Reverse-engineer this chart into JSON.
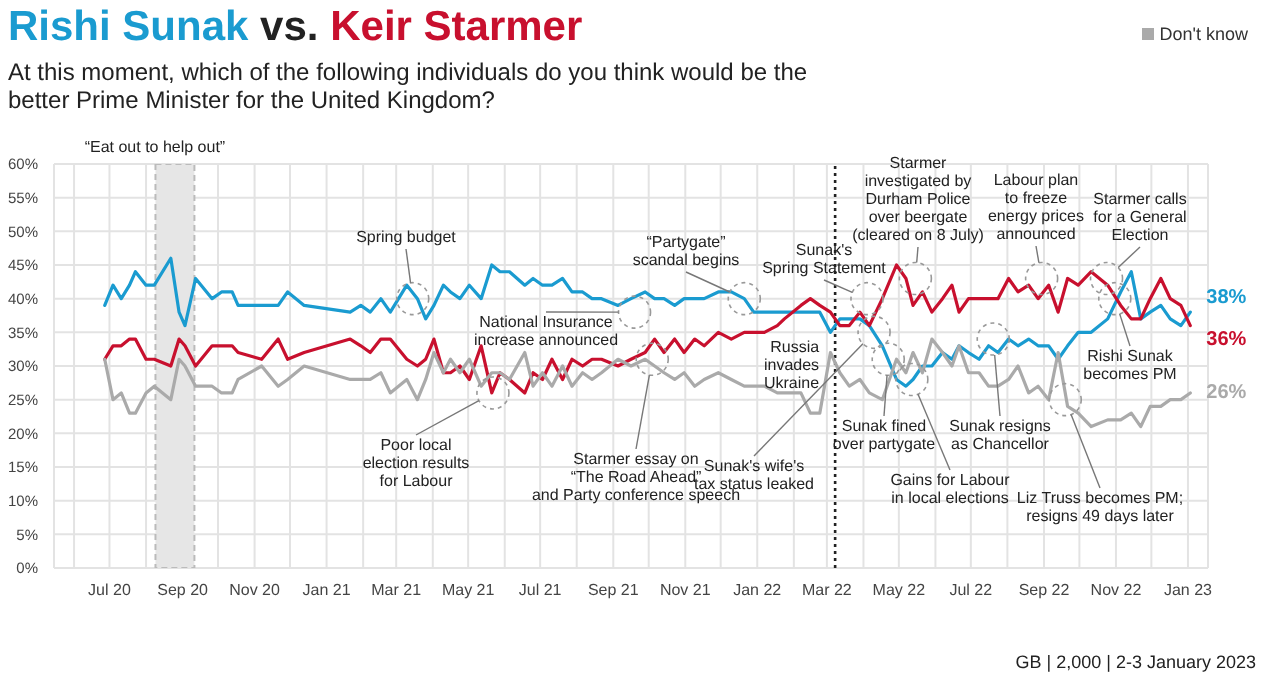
{
  "chart_data": {
    "type": "line",
    "title": "vs.",
    "subtitle": "At this moment, which of the following individuals do you think would be the better Prime Minister for the United Kingdom?",
    "x": [
      "2020-06-27",
      "2020-07-04",
      "2020-07-11",
      "2020-07-18",
      "2020-07-23",
      "2020-08-01",
      "2020-08-08",
      "2020-08-22",
      "2020-08-29",
      "2020-09-03",
      "2020-09-12",
      "2020-09-26",
      "2020-10-04",
      "2020-10-13",
      "2020-10-18",
      "2020-11-07",
      "2020-11-21",
      "2020-11-29",
      "2020-12-13",
      "2021-01-21",
      "2021-01-30",
      "2021-02-07",
      "2021-02-16",
      "2021-02-24",
      "2021-03-10",
      "2021-03-19",
      "2021-03-26",
      "2021-04-02",
      "2021-04-10",
      "2021-04-16",
      "2021-04-24",
      "2021-05-02",
      "2021-05-12",
      "2021-05-21",
      "2021-05-28",
      "2021-06-05",
      "2021-06-18",
      "2021-06-25",
      "2021-07-03",
      "2021-07-11",
      "2021-07-20",
      "2021-07-28",
      "2021-08-06",
      "2021-08-14",
      "2021-08-22",
      "2021-09-05",
      "2021-09-16",
      "2021-09-28",
      "2021-10-06",
      "2021-10-14",
      "2021-10-23",
      "2021-10-31",
      "2021-11-09",
      "2021-11-17",
      "2021-11-29",
      "2021-12-10",
      "2021-12-21",
      "2021-12-29",
      "2022-01-07",
      "2022-01-18",
      "2022-01-24",
      "2022-02-07",
      "2022-02-15",
      "2022-02-23",
      "2022-03-04",
      "2022-03-12",
      "2022-03-20",
      "2022-03-29",
      "2022-04-06",
      "2022-04-17",
      "2022-04-29",
      "2022-05-07",
      "2022-05-13",
      "2022-05-21",
      "2022-05-29",
      "2022-06-07",
      "2022-06-15",
      "2022-06-21",
      "2022-06-29",
      "2022-07-08",
      "2022-07-16",
      "2022-07-24",
      "2022-08-02",
      "2022-08-10",
      "2022-08-19",
      "2022-08-27",
      "2022-09-05",
      "2022-09-13",
      "2022-09-21",
      "2022-09-30",
      "2022-10-11",
      "2022-10-25",
      "2022-11-05",
      "2022-11-14",
      "2022-11-22",
      "2022-11-30",
      "2022-12-09",
      "2022-12-17",
      "2022-12-26",
      "2023-01-03"
    ],
    "series": [
      {
        "name": "Rishi Sunak",
        "color": "#1a9bd0",
        "values": [
          39,
          42,
          40,
          42,
          44,
          42,
          42,
          46,
          38,
          36,
          43,
          40,
          41,
          41,
          39,
          39,
          39,
          41,
          39,
          38,
          39,
          38,
          40,
          38,
          42,
          40,
          37,
          39,
          42,
          41,
          40,
          42,
          40,
          45,
          44,
          44,
          42,
          43,
          42,
          42,
          43,
          41,
          41,
          40,
          40,
          39,
          40,
          41,
          40,
          40,
          39,
          40,
          40,
          40,
          41,
          41,
          40,
          38,
          38,
          38,
          38,
          38,
          38,
          38,
          35,
          37,
          37,
          37,
          36,
          33,
          28,
          27,
          28,
          30,
          30,
          32,
          31,
          33,
          32,
          31,
          33,
          32,
          34,
          33,
          34,
          33,
          33,
          31,
          33,
          35,
          35,
          37,
          41,
          44,
          37,
          38,
          39,
          37,
          36,
          38
        ],
        "value_labels": [
          null,
          null,
          null,
          null,
          null,
          null,
          null,
          null,
          null,
          null,
          null,
          null,
          null,
          null,
          null,
          null,
          null,
          null,
          null,
          null,
          null,
          null,
          null,
          null,
          null,
          null,
          null,
          null,
          null,
          null,
          null,
          null,
          null,
          null,
          null,
          null,
          null,
          null,
          null,
          null,
          null,
          null,
          null,
          null,
          null,
          null,
          null,
          null,
          null,
          null,
          null,
          null,
          null,
          null,
          null,
          null,
          null,
          null,
          null,
          null,
          null,
          null,
          null,
          null,
          null,
          null,
          null,
          null,
          null,
          null,
          null,
          null,
          null,
          null,
          null,
          null,
          null,
          null,
          null,
          null,
          null,
          null,
          null,
          null,
          null,
          null,
          null,
          null,
          null,
          null,
          null,
          null,
          null,
          null,
          null,
          null,
          null,
          null,
          null,
          "38%"
        ]
      },
      {
        "name": "Keir Starmer",
        "color": "#c8102e",
        "values": [
          31,
          33,
          33,
          34,
          34,
          31,
          31,
          30,
          34,
          33,
          30,
          33,
          33,
          33,
          32,
          31,
          34,
          31,
          32,
          34,
          33,
          32,
          34,
          34,
          31,
          30,
          31,
          34,
          29,
          29,
          30,
          28,
          33,
          26,
          29,
          28,
          26,
          29,
          28,
          31,
          28,
          31,
          30,
          31,
          31,
          30,
          31,
          32,
          34,
          32,
          34,
          32,
          34,
          33,
          35,
          34,
          35,
          35,
          35,
          36,
          37,
          39,
          40,
          39,
          38,
          36,
          36,
          38,
          36,
          40,
          45,
          43,
          39,
          41,
          38,
          40,
          42,
          38,
          40,
          40,
          40,
          40,
          43,
          41,
          42,
          40,
          42,
          38,
          43,
          42,
          44,
          42,
          39,
          37,
          37,
          40,
          43,
          40,
          39,
          36
        ],
        "value_labels": [
          null,
          null,
          null,
          null,
          null,
          null,
          null,
          null,
          null,
          null,
          null,
          null,
          null,
          null,
          null,
          null,
          null,
          null,
          null,
          null,
          null,
          null,
          null,
          null,
          null,
          null,
          null,
          null,
          null,
          null,
          null,
          null,
          null,
          null,
          null,
          null,
          null,
          null,
          null,
          null,
          null,
          null,
          null,
          null,
          null,
          null,
          null,
          null,
          null,
          null,
          null,
          null,
          null,
          null,
          null,
          null,
          null,
          null,
          null,
          null,
          null,
          null,
          null,
          null,
          null,
          null,
          null,
          null,
          null,
          null,
          null,
          null,
          null,
          null,
          null,
          null,
          null,
          null,
          null,
          null,
          null,
          null,
          null,
          null,
          null,
          null,
          null,
          null,
          null,
          null,
          null,
          null,
          null,
          null,
          null,
          null,
          null,
          null,
          null,
          "36%"
        ]
      },
      {
        "name": "Don't know",
        "color": "#aaaaaa",
        "values": [
          31,
          25,
          26,
          23,
          23,
          26,
          27,
          25,
          31,
          30,
          27,
          27,
          26,
          26,
          28,
          30,
          27,
          28,
          30,
          28,
          28,
          28,
          29,
          26,
          28,
          25,
          28,
          32,
          29,
          31,
          29,
          31,
          27,
          29,
          29,
          28,
          32,
          27,
          29,
          27,
          30,
          27,
          29,
          28,
          29,
          31,
          30,
          31,
          30,
          29,
          28,
          29,
          27,
          28,
          29,
          28,
          27,
          27,
          27,
          26,
          26,
          26,
          23,
          23,
          32,
          29,
          27,
          28,
          26,
          25,
          31,
          29,
          32,
          29,
          34,
          32,
          30,
          33,
          29,
          29,
          27,
          27,
          28,
          30,
          26,
          27,
          25,
          32,
          24,
          23,
          21,
          22,
          22,
          23,
          21,
          24,
          24,
          25,
          25,
          26
        ],
        "value_labels": [
          null,
          null,
          null,
          null,
          null,
          null,
          null,
          null,
          null,
          null,
          null,
          null,
          null,
          null,
          null,
          null,
          null,
          null,
          null,
          null,
          null,
          null,
          null,
          null,
          null,
          null,
          null,
          null,
          null,
          null,
          null,
          null,
          null,
          null,
          null,
          null,
          null,
          null,
          null,
          null,
          null,
          null,
          null,
          null,
          null,
          null,
          null,
          null,
          null,
          null,
          null,
          null,
          null,
          null,
          null,
          null,
          null,
          null,
          null,
          null,
          null,
          null,
          null,
          null,
          null,
          null,
          null,
          null,
          null,
          null,
          null,
          null,
          null,
          null,
          null,
          null,
          null,
          null,
          null,
          null,
          null,
          null,
          null,
          null,
          null,
          null,
          null,
          null,
          null,
          null,
          null,
          null,
          null,
          null,
          null,
          null,
          null,
          null,
          null,
          "26%"
        ]
      }
    ],
    "xlim": [
      "2020-05-15",
      "2023-01-18"
    ],
    "xticks": [
      {
        "value": "2020-06-01",
        "label": null
      },
      {
        "value": "2020-07-01",
        "label": "Jul 20"
      },
      {
        "value": "2020-08-01",
        "label": null
      },
      {
        "value": "2020-09-01",
        "label": "Sep 20"
      },
      {
        "value": "2020-10-01",
        "label": null
      },
      {
        "value": "2020-11-01",
        "label": "Nov 20"
      },
      {
        "value": "2020-12-01",
        "label": null
      },
      {
        "value": "2021-01-01",
        "label": "Jan 21"
      },
      {
        "value": "2021-02-01",
        "label": null
      },
      {
        "value": "2021-03-01",
        "label": "Mar 21"
      },
      {
        "value": "2021-04-01",
        "label": null
      },
      {
        "value": "2021-05-01",
        "label": "May 21"
      },
      {
        "value": "2021-06-01",
        "label": null
      },
      {
        "value": "2021-07-01",
        "label": "Jul 21"
      },
      {
        "value": "2021-08-01",
        "label": null
      },
      {
        "value": "2021-09-01",
        "label": "Sep 21"
      },
      {
        "value": "2021-10-01",
        "label": null
      },
      {
        "value": "2021-11-01",
        "label": "Nov 21"
      },
      {
        "value": "2021-12-01",
        "label": null
      },
      {
        "value": "2022-01-01",
        "label": "Jan 22"
      },
      {
        "value": "2022-02-01",
        "label": null
      },
      {
        "value": "2022-03-01",
        "label": "Mar 22"
      },
      {
        "value": "2022-04-01",
        "label": null
      },
      {
        "value": "2022-05-01",
        "label": "May 22"
      },
      {
        "value": "2022-06-01",
        "label": null
      },
      {
        "value": "2022-07-01",
        "label": "Jul 22"
      },
      {
        "value": "2022-08-01",
        "label": null
      },
      {
        "value": "2022-09-01",
        "label": "Sep 22"
      },
      {
        "value": "2022-10-01",
        "label": null
      },
      {
        "value": "2022-11-01",
        "label": "Nov 22"
      },
      {
        "value": "2022-12-01",
        "label": null
      },
      {
        "value": "2023-01-01",
        "label": "Jan 23"
      }
    ],
    "ylim": [
      0,
      60
    ],
    "yticks": [
      {
        "value": 0,
        "label": "0%"
      },
      {
        "value": 5,
        "label": "5%"
      },
      {
        "value": 10,
        "label": "10%"
      },
      {
        "value": 15,
        "label": "15%"
      },
      {
        "value": 20,
        "label": "20%"
      },
      {
        "value": 25,
        "label": "25%"
      },
      {
        "value": 30,
        "label": "30%"
      },
      {
        "value": 35,
        "label": "35%"
      },
      {
        "value": 40,
        "label": "40%"
      },
      {
        "value": 45,
        "label": "45%"
      },
      {
        "value": 50,
        "label": "50%"
      },
      {
        "value": 55,
        "label": "55%"
      },
      {
        "value": 60,
        "label": "60%"
      }
    ],
    "grid": true,
    "legend": "top right",
    "marker": "none",
    "line_style": "solid",
    "bands": [
      {
        "axis": "x",
        "from": "2020-08-09",
        "to": "2020-09-11",
        "label": "“Eat out to help out”",
        "color": "#e6e6e6"
      }
    ],
    "ref_lines": [
      {
        "axis": "x",
        "value": "2022-03-08",
        "label": "Russia\ninvades\nUkraine",
        "line_style": "dotted",
        "color": "#222222"
      }
    ],
    "annotations": [
      {
        "text": "Spring budget",
        "x": "2021-03-15",
        "y": 40
      },
      {
        "text": "Poor local\nelection results\nfor Labour",
        "x": "2021-05-22",
        "y": 26
      },
      {
        "text": "National Insurance\nincrease announced",
        "x": "2021-09-19",
        "y": 38
      },
      {
        "text": "Starmer essay on\n“The Road Ahead”\nand Party conference speech",
        "x": "2021-10-04",
        "y": 31
      },
      {
        "text": "“Partygate”\nscandal begins",
        "x": "2021-12-21",
        "y": 40
      },
      {
        "text": "Sunak's\nSpring Statement",
        "x": "2022-04-04",
        "y": 40
      },
      {
        "text": "Sunak's wife's\ntax status leaked",
        "x": "2022-04-10",
        "y": 35
      },
      {
        "text": "Sunak fined\nover partygate",
        "x": "2022-04-22",
        "y": 31
      },
      {
        "text": "Gains for Labour\nin local elections",
        "x": "2022-05-12",
        "y": 28
      },
      {
        "text": "Starmer\ninvestigated by\nDurham Police\nover beergate\n(cleared on 8 July)",
        "x": "2022-05-15",
        "y": 43
      },
      {
        "text": "Sunak resigns\nas Chancellor",
        "x": "2022-07-20",
        "y": 34
      },
      {
        "text": "Labour plan\nto freeze\nenergy prices\nannounced",
        "x": "2022-08-30",
        "y": 43
      },
      {
        "text": "Starmer calls\nfor a General\nElection",
        "x": "2022-10-24",
        "y": 43
      },
      {
        "text": "Rishi Sunak\nbecomes PM",
        "x": "2022-10-31",
        "y": 40
      },
      {
        "text": "Liz Truss becomes PM;\nresigns 49 days later",
        "x": "2022-09-19",
        "y": 25
      },
      "GB | 2,000 | 2-3 January 2023"
    ]
  }
}
